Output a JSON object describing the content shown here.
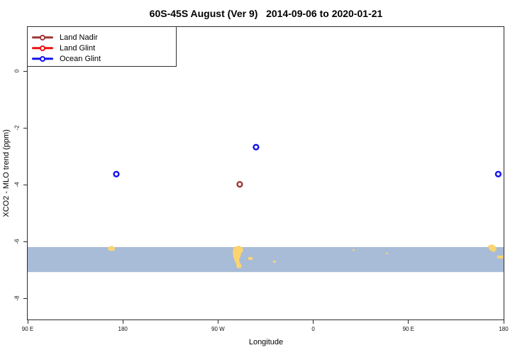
{
  "title": "60S-45S August (Ver 9)   2014-09-06 to 2020-01-21",
  "legend": {
    "items": [
      {
        "label": "Land Nadir",
        "color": "#9e3838"
      },
      {
        "label": "Land Glint",
        "color": "#ee1010"
      },
      {
        "label": "Ocean Glint",
        "color": "#1212ee"
      }
    ]
  },
  "chart_data": {
    "type": "scatter",
    "title": "60S-45S August (Ver 9)   2014-09-06 to 2020-01-21",
    "xlabel": "Longitude",
    "ylabel": "XCO2 - MLO trend (ppm)",
    "x_axis": {
      "range": [
        90,
        540
      ],
      "note": "longitude axis spans 450 deg starting at 90E and wrapping past 180 through 0 back to 180",
      "ticks": [
        {
          "value": 90,
          "label": "90 E"
        },
        {
          "value": 180,
          "label": "180"
        },
        {
          "value": 270,
          "label": "90 W"
        },
        {
          "value": 360,
          "label": "0"
        },
        {
          "value": 450,
          "label": "90 E"
        },
        {
          "value": 540,
          "label": "180"
        }
      ]
    },
    "y_axis": {
      "range": [
        -8.75,
        1.55
      ],
      "ticks": [
        {
          "value": 0,
          "label": "0"
        },
        {
          "value": -2,
          "label": "-2"
        },
        {
          "value": -4,
          "label": "-4"
        },
        {
          "value": -6,
          "label": "-6"
        },
        {
          "value": -8,
          "label": "-8"
        }
      ]
    },
    "grid": false,
    "legend_position": "top-left",
    "band": {
      "top": -6.2,
      "bottom": -7.08,
      "color": "#a8bcd8",
      "meaning": "60S-45S ocean strip"
    },
    "land_color": "#fbd470",
    "series": [
      {
        "name": "Land Nadir",
        "color": "#9e3838",
        "points": [
          [
            290.5,
            -3.99
          ]
        ]
      },
      {
        "name": "Land Glint",
        "color": "#ee1010",
        "points": []
      },
      {
        "name": "Ocean Glint",
        "color": "#1212ee",
        "points": [
          [
            173.8,
            -3.63
          ],
          [
            305.9,
            -2.68
          ],
          [
            534.9,
            -3.63
          ]
        ]
      }
    ],
    "map_features": [
      {
        "name": "new-zealand",
        "points": [
          [
            166.4,
            -6.2
          ],
          [
            169.8,
            -6.15
          ],
          [
            172.5,
            -6.23
          ],
          [
            171.8,
            -6.33
          ],
          [
            167.8,
            -6.33
          ],
          [
            165.8,
            -6.28
          ]
        ]
      },
      {
        "name": "new-zealand-wrapped",
        "points": [
          [
            525.2,
            -6.15
          ],
          [
            529.2,
            -6.1
          ],
          [
            532.6,
            -6.18
          ],
          [
            533.3,
            -6.3
          ],
          [
            530.6,
            -6.38
          ],
          [
            526.6,
            -6.3
          ]
        ]
      },
      {
        "name": "chatham-islands",
        "points": [
          [
            534.0,
            -6.5
          ],
          [
            539.5,
            -6.5
          ],
          [
            539.5,
            -6.6
          ],
          [
            534.0,
            -6.6
          ]
        ]
      },
      {
        "name": "patagonia",
        "points": [
          [
            285.8,
            -6.18
          ],
          [
            290.5,
            -6.15
          ],
          [
            293.2,
            -6.23
          ],
          [
            293.9,
            -6.33
          ],
          [
            291.9,
            -6.4
          ],
          [
            291.2,
            -6.53
          ],
          [
            289.8,
            -6.63
          ],
          [
            290.5,
            -6.75
          ],
          [
            292.5,
            -6.85
          ],
          [
            291.2,
            -6.95
          ],
          [
            287.8,
            -6.93
          ],
          [
            287.2,
            -6.8
          ],
          [
            285.8,
            -6.68
          ],
          [
            284.5,
            -6.53
          ],
          [
            283.8,
            -6.38
          ],
          [
            284.5,
            -6.25
          ]
        ]
      },
      {
        "name": "falkland-islands",
        "points": [
          [
            298.6,
            -6.55
          ],
          [
            302.6,
            -6.55
          ],
          [
            302.6,
            -6.65
          ],
          [
            298.6,
            -6.65
          ]
        ]
      },
      {
        "name": "south-georgia",
        "points": [
          [
            322.0,
            -6.68
          ],
          [
            324.7,
            -6.68
          ],
          [
            324.7,
            -6.75
          ],
          [
            322.0,
            -6.75
          ]
        ]
      },
      {
        "name": "prince-edward-is",
        "points": [
          [
            397.1,
            -6.28
          ],
          [
            399.1,
            -6.28
          ],
          [
            399.1,
            -6.33
          ],
          [
            397.1,
            -6.33
          ]
        ]
      },
      {
        "name": "kerguelen",
        "points": [
          [
            428.6,
            -6.4
          ],
          [
            430.6,
            -6.4
          ],
          [
            430.6,
            -6.45
          ],
          [
            428.6,
            -6.45
          ]
        ]
      }
    ],
    "marker": {
      "shape": "open-circle",
      "radius_px": 3.4,
      "stroke_px": 2.4
    },
    "frame_color": "#2b2b2b"
  }
}
